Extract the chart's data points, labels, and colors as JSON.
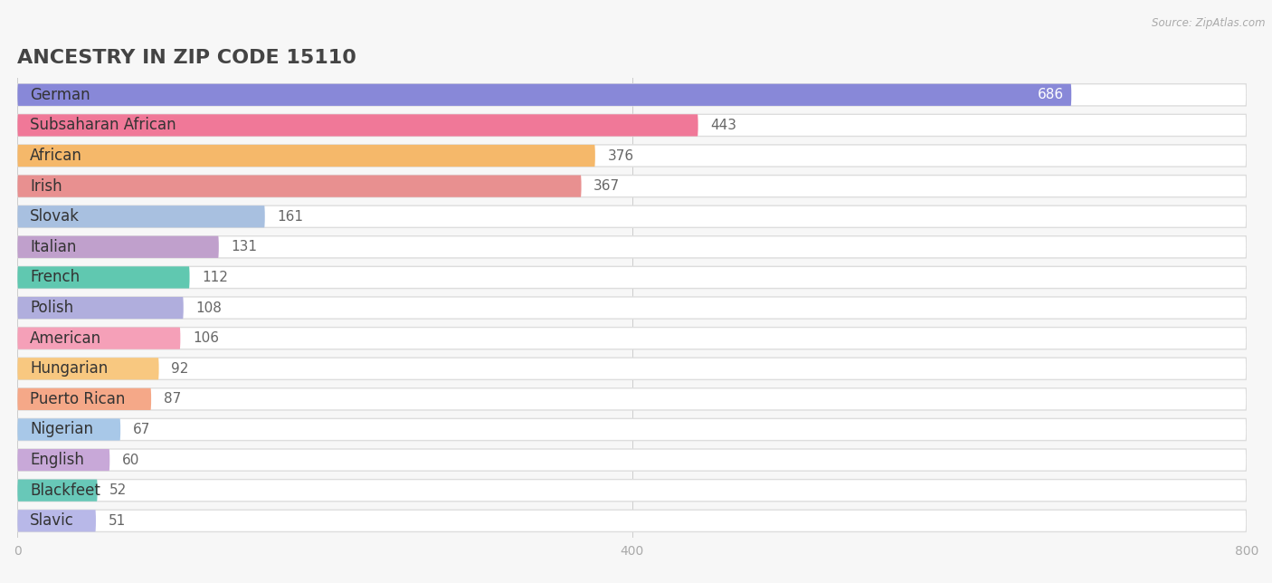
{
  "title": "ANCESTRY IN ZIP CODE 15110",
  "source": "Source: ZipAtlas.com",
  "categories": [
    "German",
    "Subsaharan African",
    "African",
    "Irish",
    "Slovak",
    "Italian",
    "French",
    "Polish",
    "American",
    "Hungarian",
    "Puerto Rican",
    "Nigerian",
    "English",
    "Blackfeet",
    "Slavic"
  ],
  "values": [
    686,
    443,
    376,
    367,
    161,
    131,
    112,
    108,
    106,
    92,
    87,
    67,
    60,
    52,
    51
  ],
  "colors": [
    "#8888d8",
    "#f07898",
    "#f5b86a",
    "#e89090",
    "#a8c0e0",
    "#c0a0cc",
    "#60c8b0",
    "#b0aedd",
    "#f5a0b8",
    "#f8c880",
    "#f5a888",
    "#a8c8e8",
    "#c8a8d8",
    "#68c8b8",
    "#b8b8e8"
  ],
  "xlim": [
    0,
    800
  ],
  "xticks": [
    0,
    400,
    800
  ],
  "background_color": "#f7f7f7",
  "row_bg_color": "#eeeeee",
  "title_fontsize": 16,
  "label_fontsize": 12,
  "value_fontsize": 11,
  "bar_height": 0.72
}
